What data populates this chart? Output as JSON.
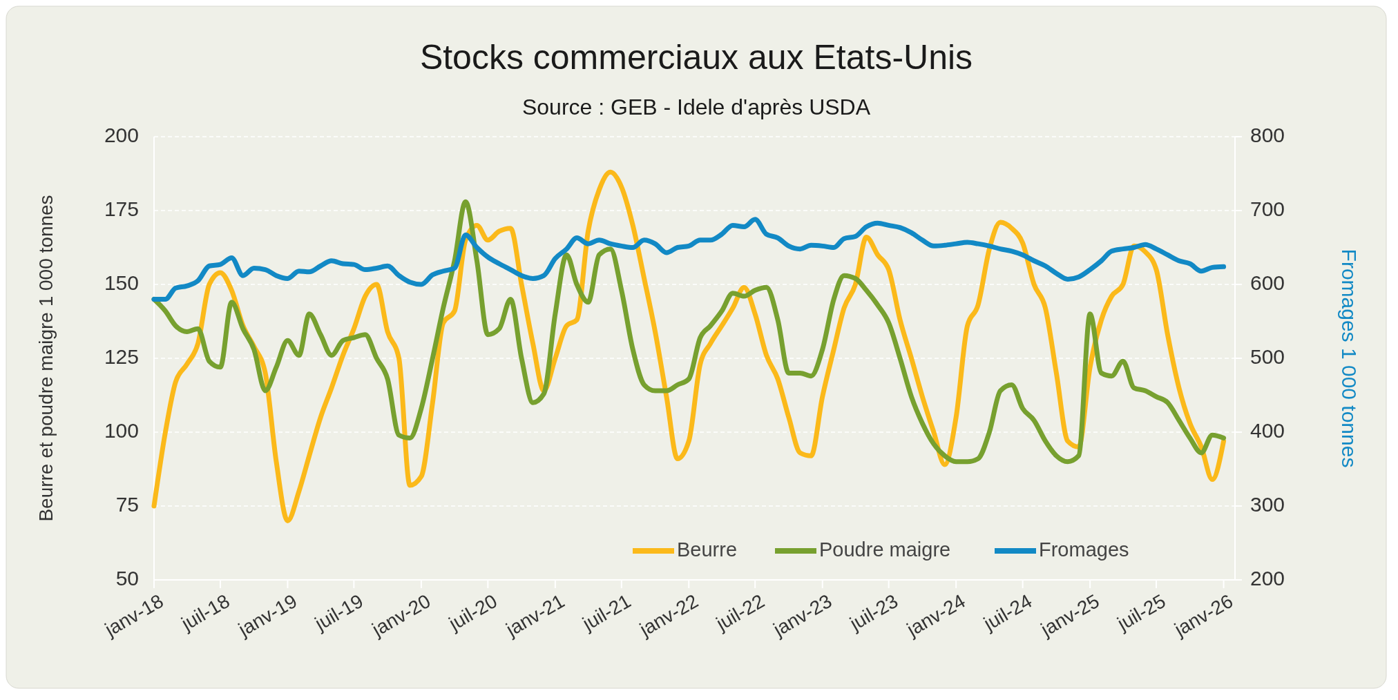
{
  "chart_data": {
    "type": "line",
    "title": "Stocks commerciaux aux Etats-Unis",
    "subtitle": "Source : GEB - Idele d'après USDA",
    "ylabel": "Beurre et poudre maigre 1 000 tonnes",
    "y2label": "Fromages 1 000 tonnes",
    "x": [
      "2018-01",
      "2018-02",
      "2018-03",
      "2018-04",
      "2018-05",
      "2018-06",
      "2018-07",
      "2018-08",
      "2018-09",
      "2018-10",
      "2018-11",
      "2018-12",
      "2019-01",
      "2019-02",
      "2019-03",
      "2019-04",
      "2019-05",
      "2019-06",
      "2019-07",
      "2019-08",
      "2019-09",
      "2019-10",
      "2019-11",
      "2019-12",
      "2020-01",
      "2020-02",
      "2020-03",
      "2020-04",
      "2020-05",
      "2020-06",
      "2020-07",
      "2020-08",
      "2020-09",
      "2020-10",
      "2020-11",
      "2020-12",
      "2021-01",
      "2021-02",
      "2021-03",
      "2021-04",
      "2021-05",
      "2021-06",
      "2021-07",
      "2021-08",
      "2021-09",
      "2021-10",
      "2021-11",
      "2021-12",
      "2022-01",
      "2022-02",
      "2022-03",
      "2022-04",
      "2022-05",
      "2022-06",
      "2022-07",
      "2022-08",
      "2022-09",
      "2022-10",
      "2022-11",
      "2022-12",
      "2023-01",
      "2023-02",
      "2023-03",
      "2023-04",
      "2023-05",
      "2023-06",
      "2023-07",
      "2023-08",
      "2023-09",
      "2023-10",
      "2023-11",
      "2023-12",
      "2024-01",
      "2024-02",
      "2024-03",
      "2024-04",
      "2024-05",
      "2024-06",
      "2024-07",
      "2024-08",
      "2024-09",
      "2024-10",
      "2024-11",
      "2024-12",
      "2025-01",
      "2025-02",
      "2025-03",
      "2025-04",
      "2025-05",
      "2025-06",
      "2025-07",
      "2025-08",
      "2025-09",
      "2025-10",
      "2025-11",
      "2025-12",
      "2026-01"
    ],
    "series": [
      {
        "name": "Beurre",
        "color": "#fbb91a",
        "values": [
          75,
          100,
          117,
          123,
          130,
          150,
          154,
          148,
          136,
          129,
          120,
          90,
          70,
          80,
          92,
          105,
          115,
          126,
          135,
          146,
          150,
          134,
          125,
          82,
          85,
          110,
          137,
          141,
          165,
          170,
          165,
          168,
          169,
          150,
          130,
          114,
          125,
          136,
          138,
          168,
          182,
          188,
          183,
          170,
          152,
          134,
          112,
          91,
          97,
          123,
          130,
          136,
          142,
          149,
          140,
          126,
          118,
          105,
          93,
          92,
          112,
          128,
          142,
          150,
          166,
          160,
          155,
          138,
          125,
          112,
          100,
          89,
          105,
          136,
          143,
          162,
          171,
          169,
          164,
          150,
          142,
          120,
          97,
          95,
          122,
          138,
          146,
          150,
          163,
          161,
          155,
          133,
          115,
          103,
          95,
          84,
          97
        ]
      },
      {
        "name": "Poudre maigre",
        "color": "#77a02f",
        "values": [
          145,
          141,
          136,
          134,
          135,
          124,
          122,
          144,
          135,
          128,
          114,
          122,
          131,
          126,
          140,
          133,
          126,
          131,
          132,
          133,
          125,
          118,
          99,
          98,
          108,
          125,
          142,
          158,
          178,
          158,
          133,
          135,
          145,
          125,
          110,
          113,
          140,
          160,
          150,
          144,
          160,
          162,
          148,
          128,
          116,
          114,
          114,
          116,
          118,
          132,
          136,
          141,
          147,
          146,
          148,
          149,
          138,
          120,
          120,
          119,
          128,
          145,
          153,
          152,
          148,
          143,
          137,
          125,
          112,
          103,
          96,
          92,
          90,
          90,
          91,
          100,
          114,
          116,
          108,
          104,
          97,
          92,
          90,
          92,
          140,
          120,
          119,
          124,
          115,
          114,
          112,
          110,
          104,
          98,
          93,
          99,
          98
        ]
      },
      {
        "name": "Fromages",
        "color": "#1289c5",
        "axis": "y2",
        "values": [
          580,
          580,
          595,
          598,
          605,
          625,
          627,
          636,
          612,
          622,
          620,
          612,
          608,
          618,
          617,
          625,
          632,
          628,
          627,
          620,
          622,
          625,
          612,
          603,
          600,
          613,
          618,
          622,
          667,
          650,
          637,
          628,
          620,
          612,
          608,
          612,
          635,
          648,
          663,
          655,
          660,
          655,
          652,
          650,
          660,
          655,
          643,
          650,
          652,
          660,
          660,
          668,
          680,
          678,
          688,
          668,
          663,
          652,
          648,
          653,
          652,
          650,
          662,
          665,
          678,
          683,
          680,
          677,
          670,
          660,
          652,
          653,
          655,
          657,
          655,
          652,
          648,
          645,
          640,
          632,
          625,
          615,
          607,
          610,
          620,
          632,
          645,
          648,
          650,
          654,
          648,
          640,
          632,
          628,
          618,
          623,
          624
        ]
      }
    ],
    "xlim": [
      "2018-01",
      "2026-02"
    ],
    "xticks": [
      {
        "value": "2018-01",
        "label": "janv-18"
      },
      {
        "value": "2018-07",
        "label": "juil-18"
      },
      {
        "value": "2019-01",
        "label": "janv-19"
      },
      {
        "value": "2019-07",
        "label": "juil-19"
      },
      {
        "value": "2020-01",
        "label": "janv-20"
      },
      {
        "value": "2020-07",
        "label": "juil-20"
      },
      {
        "value": "2021-01",
        "label": "janv-21"
      },
      {
        "value": "2021-07",
        "label": "juil-21"
      },
      {
        "value": "2022-01",
        "label": "janv-22"
      },
      {
        "value": "2022-07",
        "label": "juil-22"
      },
      {
        "value": "2023-01",
        "label": "janv-23"
      },
      {
        "value": "2023-07",
        "label": "juil-23"
      },
      {
        "value": "2024-01",
        "label": "janv-24"
      },
      {
        "value": "2024-07",
        "label": "juil-24"
      },
      {
        "value": "2025-01",
        "label": "janv-25"
      },
      {
        "value": "2025-07",
        "label": "juil-25"
      },
      {
        "value": "2026-01",
        "label": "janv-26"
      }
    ],
    "ylim": [
      50,
      200
    ],
    "yticks": [
      50,
      75,
      100,
      125,
      150,
      175,
      200
    ],
    "y2lim": [
      200,
      800
    ],
    "y2ticks": [
      200,
      300,
      400,
      500,
      600,
      700,
      800
    ],
    "grid": "y",
    "legend": "bottom right",
    "marker": "none",
    "line_style": "solid"
  }
}
